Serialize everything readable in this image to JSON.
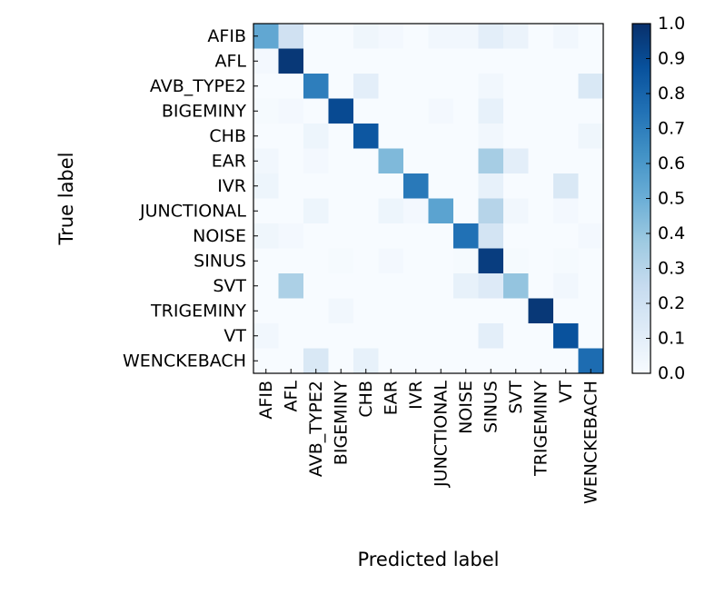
{
  "chart_data": {
    "type": "heatmap",
    "title": "",
    "xlabel": "Predicted label",
    "ylabel": "True label",
    "rows": [
      "AFIB",
      "AFL",
      "AVB_TYPE2",
      "BIGEMINY",
      "CHB",
      "EAR",
      "IVR",
      "JUNCTIONAL",
      "NOISE",
      "SINUS",
      "SVT",
      "TRIGEMINY",
      "VT",
      "WENCKEBACH"
    ],
    "columns": [
      "AFIB",
      "AFL",
      "AVB_TYPE2",
      "BIGEMINY",
      "CHB",
      "EAR",
      "IVR",
      "JUNCTIONAL",
      "NOISE",
      "SINUS",
      "SVT",
      "TRIGEMINY",
      "VT",
      "WENCKEBACH"
    ],
    "values": [
      [
        0.53,
        0.2,
        0.0,
        0.0,
        0.04,
        0.02,
        0.0,
        0.03,
        0.03,
        0.1,
        0.06,
        0.0,
        0.03,
        0.0
      ],
      [
        0.02,
        0.97,
        0.0,
        0.0,
        0.0,
        0.0,
        0.0,
        0.0,
        0.0,
        0.0,
        0.0,
        0.0,
        0.0,
        0.0
      ],
      [
        0.0,
        0.0,
        0.7,
        0.0,
        0.1,
        0.0,
        0.0,
        0.0,
        0.0,
        0.03,
        0.0,
        0.0,
        0.0,
        0.15
      ],
      [
        0.01,
        0.02,
        0.0,
        0.9,
        0.0,
        0.0,
        0.0,
        0.02,
        0.0,
        0.08,
        0.0,
        0.0,
        0.0,
        0.0
      ],
      [
        0.0,
        0.0,
        0.05,
        0.0,
        0.85,
        0.0,
        0.0,
        0.0,
        0.0,
        0.03,
        0.0,
        0.0,
        0.0,
        0.04
      ],
      [
        0.03,
        0.0,
        0.02,
        0.0,
        0.0,
        0.45,
        0.0,
        0.0,
        0.0,
        0.35,
        0.1,
        0.0,
        0.0,
        0.0
      ],
      [
        0.05,
        0.0,
        0.0,
        0.0,
        0.0,
        0.0,
        0.72,
        0.0,
        0.0,
        0.08,
        0.0,
        0.0,
        0.15,
        0.0
      ],
      [
        0.0,
        0.0,
        0.05,
        0.0,
        0.0,
        0.05,
        0.02,
        0.55,
        0.0,
        0.3,
        0.03,
        0.0,
        0.02,
        0.0
      ],
      [
        0.04,
        0.02,
        0.0,
        0.0,
        0.0,
        0.0,
        0.0,
        0.0,
        0.75,
        0.18,
        0.0,
        0.0,
        0.0,
        0.02
      ],
      [
        0.0,
        0.0,
        0.0,
        0.01,
        0.0,
        0.02,
        0.0,
        0.0,
        0.01,
        0.95,
        0.01,
        0.0,
        0.01,
        0.0
      ],
      [
        0.0,
        0.33,
        0.0,
        0.0,
        0.0,
        0.0,
        0.0,
        0.0,
        0.08,
        0.13,
        0.4,
        0.0,
        0.03,
        0.0
      ],
      [
        0.0,
        0.0,
        0.0,
        0.03,
        0.0,
        0.0,
        0.0,
        0.0,
        0.0,
        0.0,
        0.0,
        0.97,
        0.0,
        0.0
      ],
      [
        0.03,
        0.0,
        0.0,
        0.0,
        0.0,
        0.0,
        0.0,
        0.0,
        0.0,
        0.1,
        0.0,
        0.0,
        0.87,
        0.0
      ],
      [
        0.0,
        0.0,
        0.15,
        0.0,
        0.08,
        0.0,
        0.0,
        0.0,
        0.0,
        0.0,
        0.0,
        0.0,
        0.0,
        0.77
      ]
    ],
    "colorbar": {
      "range": [
        0.0,
        1.0
      ],
      "ticks": [
        "0.0",
        "0.1",
        "0.2",
        "0.3",
        "0.4",
        "0.5",
        "0.6",
        "0.7",
        "0.8",
        "0.9",
        "1.0"
      ],
      "colormap": "Blues",
      "low_color": "#f7fbff",
      "high_color": "#08306b"
    },
    "grid": false
  }
}
